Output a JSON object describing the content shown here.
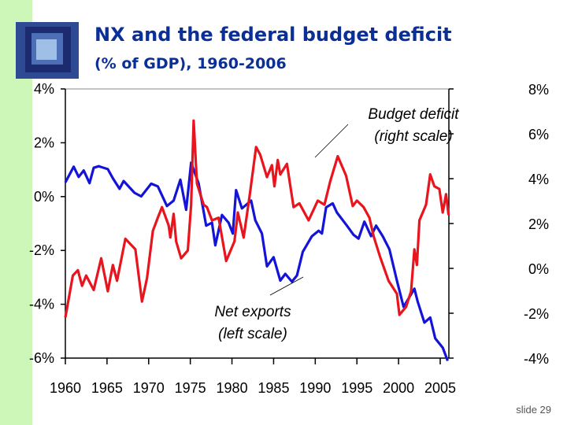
{
  "slide": {
    "title": "NX and the federal budget deficit",
    "subtitle": "(% of GDP), 1960-2006",
    "slide_number": "slide 29"
  },
  "colors": {
    "net_exports": "#1414d8",
    "budget_deficit": "#e8141e",
    "title": "#0a2f96",
    "side_strip": "#ccf7b8"
  },
  "chart_data": {
    "type": "line",
    "title": "NX and the federal budget deficit (% of GDP), 1960-2006",
    "xlim": [
      1960,
      2006
    ],
    "x_ticks": [
      1960,
      1965,
      1970,
      1975,
      1980,
      1985,
      1990,
      1995,
      2000,
      2005
    ],
    "x_tick_labels": [
      "1960",
      "1965",
      "1970",
      "1975",
      "1980",
      "1985",
      "1990",
      "1995",
      "2000",
      "2005"
    ],
    "left_axis": {
      "ylim": [
        -6,
        4
      ],
      "ticks": [
        4,
        2,
        0,
        -2,
        -4,
        -6
      ],
      "tick_labels": [
        "4%",
        "2%",
        "0%",
        "-2%",
        "-4%",
        "-6%"
      ]
    },
    "right_axis": {
      "ylim": [
        -4,
        8
      ],
      "ticks": [
        8,
        6,
        4,
        2,
        0,
        -2,
        -4
      ],
      "tick_labels": [
        "8%",
        "6%",
        "4%",
        "2%",
        "0%",
        "-2%",
        "-4%"
      ]
    },
    "grid": false,
    "annotations": {
      "budget_deficit": [
        "Budget deficit",
        "(right scale)"
      ],
      "net_exports": [
        "Net exports",
        "(left scale)"
      ]
    },
    "series": [
      {
        "name": "Net exports",
        "axis": "left",
        "color": "#1414d8",
        "points": [
          [
            1960.0,
            0.53
          ],
          [
            1961.0,
            1.11
          ],
          [
            1961.6,
            0.73
          ],
          [
            1962.2,
            0.97
          ],
          [
            1962.9,
            0.5
          ],
          [
            1963.4,
            1.07
          ],
          [
            1964.0,
            1.13
          ],
          [
            1965.1,
            1.02
          ],
          [
            1965.7,
            0.68
          ],
          [
            1966.5,
            0.29
          ],
          [
            1967.0,
            0.58
          ],
          [
            1968.3,
            0.14
          ],
          [
            1969.1,
            0.01
          ],
          [
            1970.3,
            0.48
          ],
          [
            1971.1,
            0.38
          ],
          [
            1972.2,
            -0.35
          ],
          [
            1973.0,
            -0.15
          ],
          [
            1973.8,
            0.63
          ],
          [
            1974.5,
            -0.49
          ],
          [
            1975.1,
            1.26
          ],
          [
            1976.0,
            0.49
          ],
          [
            1976.9,
            -1.08
          ],
          [
            1977.6,
            -0.97
          ],
          [
            1978.0,
            -1.81
          ],
          [
            1978.8,
            -0.68
          ],
          [
            1979.6,
            -0.97
          ],
          [
            1980.1,
            -1.37
          ],
          [
            1980.5,
            0.24
          ],
          [
            1981.2,
            -0.44
          ],
          [
            1982.3,
            -0.15
          ],
          [
            1982.8,
            -0.88
          ],
          [
            1983.6,
            -1.37
          ],
          [
            1984.2,
            -2.59
          ],
          [
            1985.0,
            -2.25
          ],
          [
            1985.8,
            -3.12
          ],
          [
            1986.4,
            -2.87
          ],
          [
            1987.2,
            -3.16
          ],
          [
            1987.8,
            -2.93
          ],
          [
            1988.5,
            -2.05
          ],
          [
            1989.6,
            -1.47
          ],
          [
            1990.4,
            -1.27
          ],
          [
            1990.8,
            -1.37
          ],
          [
            1991.3,
            -0.4
          ],
          [
            1992.1,
            -0.25
          ],
          [
            1992.6,
            -0.59
          ],
          [
            1993.8,
            -1.08
          ],
          [
            1994.6,
            -1.42
          ],
          [
            1995.2,
            -1.56
          ],
          [
            1995.9,
            -0.93
          ],
          [
            1996.7,
            -1.47
          ],
          [
            1997.3,
            -1.08
          ],
          [
            1998.1,
            -1.47
          ],
          [
            1998.9,
            -1.96
          ],
          [
            1999.8,
            -3.12
          ],
          [
            2000.6,
            -4.1
          ],
          [
            2001.9,
            -3.42
          ],
          [
            2002.3,
            -3.9
          ],
          [
            2003.1,
            -4.68
          ],
          [
            2003.8,
            -4.49
          ],
          [
            2004.4,
            -5.27
          ],
          [
            2005.3,
            -5.61
          ],
          [
            2005.9,
            -6.1
          ]
        ]
      },
      {
        "name": "Budget deficit",
        "axis": "right",
        "color": "#e8141e",
        "points": [
          [
            1960.0,
            -2.19
          ],
          [
            1960.9,
            -0.32
          ],
          [
            1961.5,
            -0.08
          ],
          [
            1962.0,
            -0.78
          ],
          [
            1962.5,
            -0.32
          ],
          [
            1963.4,
            -0.96
          ],
          [
            1964.3,
            0.45
          ],
          [
            1965.1,
            -1.02
          ],
          [
            1965.7,
            0.15
          ],
          [
            1966.2,
            -0.55
          ],
          [
            1967.2,
            1.32
          ],
          [
            1968.4,
            0.85
          ],
          [
            1969.2,
            -1.48
          ],
          [
            1969.8,
            -0.43
          ],
          [
            1970.5,
            1.67
          ],
          [
            1971.1,
            2.26
          ],
          [
            1971.6,
            2.73
          ],
          [
            1972.4,
            1.91
          ],
          [
            1972.6,
            1.38
          ],
          [
            1973.0,
            2.43
          ],
          [
            1973.3,
            1.2
          ],
          [
            1973.9,
            0.45
          ],
          [
            1974.7,
            0.8
          ],
          [
            1975.1,
            2.84
          ],
          [
            1975.4,
            6.59
          ],
          [
            1975.8,
            3.78
          ],
          [
            1976.6,
            2.84
          ],
          [
            1977.0,
            2.73
          ],
          [
            1977.6,
            2.14
          ],
          [
            1978.4,
            2.26
          ],
          [
            1979.3,
            0.33
          ],
          [
            1980.3,
            1.2
          ],
          [
            1980.7,
            2.49
          ],
          [
            1981.4,
            1.38
          ],
          [
            1982.1,
            3.19
          ],
          [
            1982.9,
            5.41
          ],
          [
            1983.4,
            5.06
          ],
          [
            1984.2,
            4.07
          ],
          [
            1984.8,
            4.6
          ],
          [
            1985.1,
            3.66
          ],
          [
            1985.5,
            4.83
          ],
          [
            1985.8,
            4.19
          ],
          [
            1986.6,
            4.66
          ],
          [
            1987.4,
            2.73
          ],
          [
            1988.1,
            2.9
          ],
          [
            1989.2,
            2.14
          ],
          [
            1990.3,
            3.02
          ],
          [
            1991.1,
            2.84
          ],
          [
            1991.8,
            3.89
          ],
          [
            1992.7,
            5.0
          ],
          [
            1993.7,
            4.13
          ],
          [
            1994.5,
            2.78
          ],
          [
            1995.0,
            3.02
          ],
          [
            1995.8,
            2.73
          ],
          [
            1996.5,
            2.26
          ],
          [
            1997.0,
            1.44
          ],
          [
            1997.8,
            0.5
          ],
          [
            1998.8,
            -0.55
          ],
          [
            1999.8,
            -1.13
          ],
          [
            2000.1,
            -2.07
          ],
          [
            2000.9,
            -1.72
          ],
          [
            2001.5,
            -1.02
          ],
          [
            2001.9,
            0.85
          ],
          [
            2002.2,
            0.15
          ],
          [
            2002.5,
            2.14
          ],
          [
            2003.3,
            2.84
          ],
          [
            2003.8,
            4.19
          ],
          [
            2004.3,
            3.66
          ],
          [
            2004.9,
            3.54
          ],
          [
            2005.3,
            2.49
          ],
          [
            2005.7,
            3.31
          ],
          [
            2006.0,
            2.38
          ]
        ]
      }
    ]
  }
}
